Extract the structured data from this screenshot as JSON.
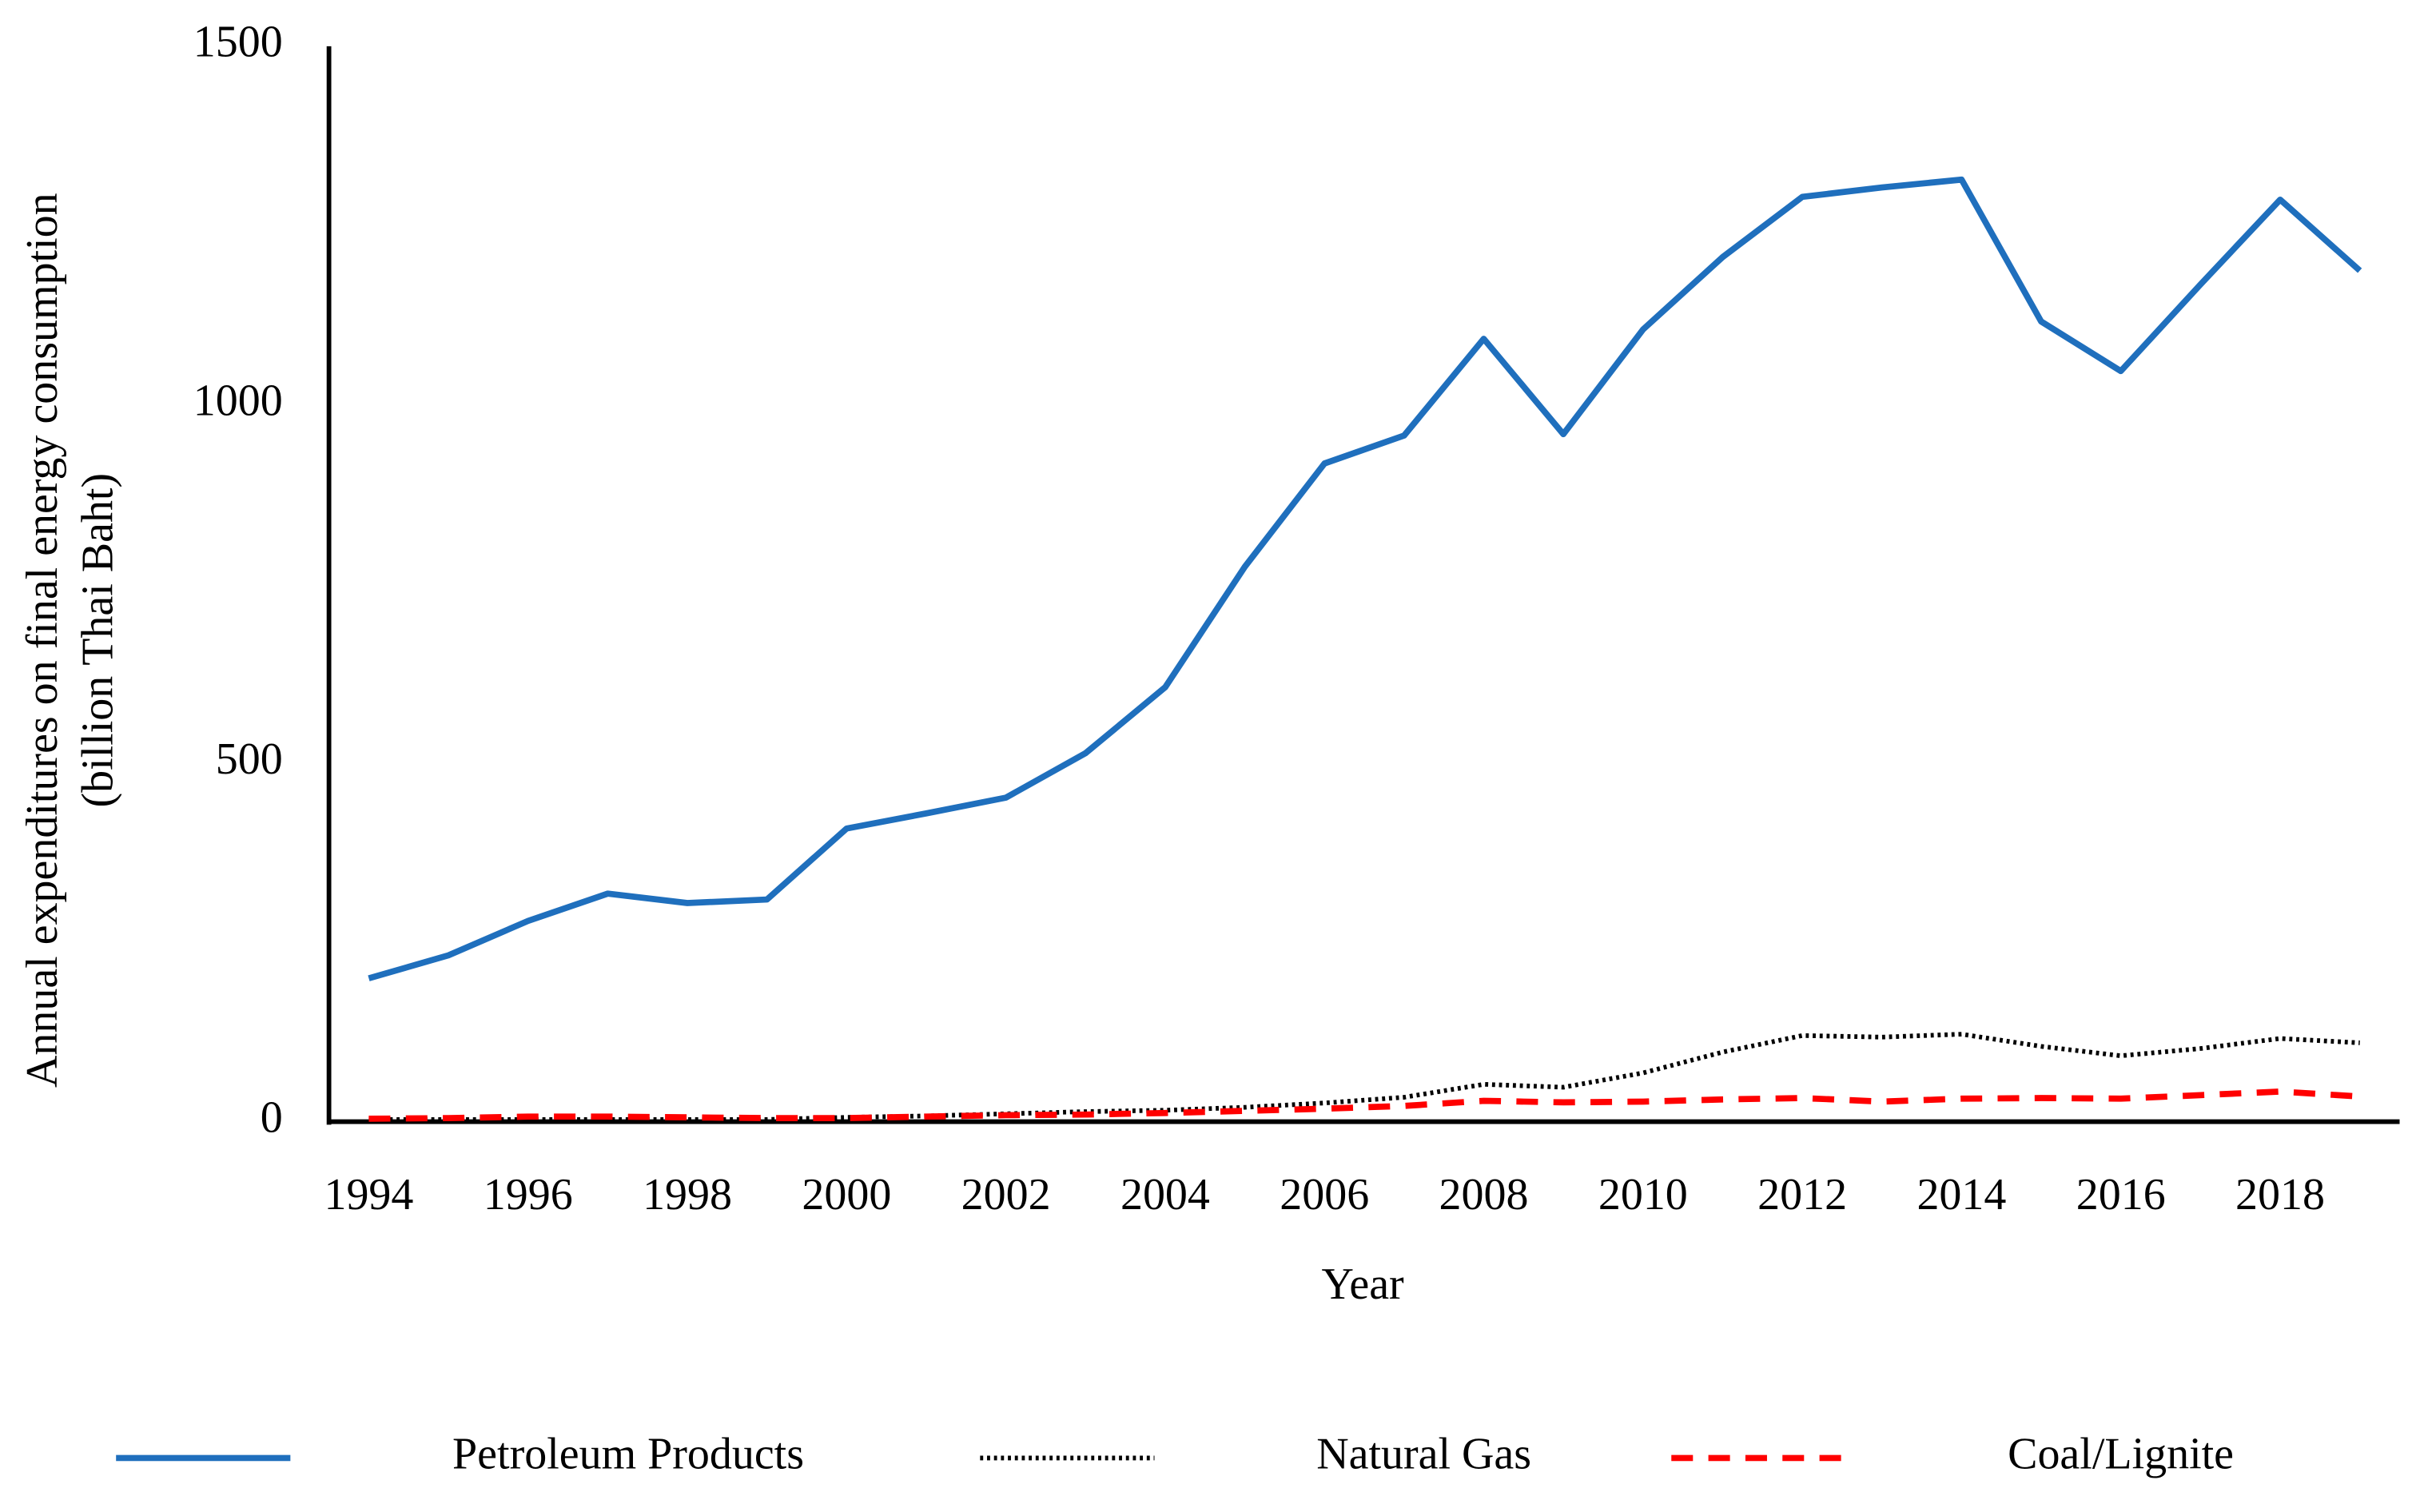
{
  "chart_data": {
    "type": "line",
    "xlabel": "Year",
    "ylabel": [
      "Annual expenditures on final energy consumption",
      "(billion Thai Baht)"
    ],
    "x": [
      1994,
      1995,
      1996,
      1997,
      1998,
      1999,
      2000,
      2001,
      2002,
      2003,
      2004,
      2005,
      2006,
      2007,
      2008,
      2009,
      2010,
      2011,
      2012,
      2013,
      2014,
      2015,
      2016,
      2017,
      2018,
      2019
    ],
    "xlim": [
      1993.5,
      2019.5
    ],
    "xticks": [
      1994,
      1996,
      1998,
      2000,
      2002,
      2004,
      2006,
      2008,
      2010,
      2012,
      2014,
      2016,
      2018
    ],
    "ylim": [
      0,
      1500
    ],
    "yticks": [
      0,
      500,
      1000,
      1500
    ],
    "grid": false,
    "legend": "bottom",
    "series": [
      {
        "name": "Petroleum Products",
        "color": "#1f6fbd",
        "dash": "solid",
        "values": [
          200,
          232,
          280,
          318,
          305,
          310,
          409,
          430,
          452,
          514,
          606,
          774,
          918,
          957,
          1092,
          959,
          1105,
          1206,
          1290,
          1303,
          1314,
          1116,
          1047,
          1168,
          1286,
          1187
        ]
      },
      {
        "name": "Natural Gas",
        "color": "#000000",
        "dash": "dotted",
        "values": [
          3,
          3,
          3,
          3,
          3,
          3,
          6,
          8,
          11,
          14,
          16,
          20,
          26,
          34,
          52,
          48,
          68,
          97,
          120,
          118,
          122,
          105,
          92,
          102,
          116,
          110
        ]
      },
      {
        "name": "Coal/Lignite",
        "color": "#ff0000",
        "dash": "dashed",
        "values": [
          4,
          5,
          7,
          7,
          6,
          5,
          5,
          7,
          9,
          10,
          12,
          15,
          18,
          22,
          29,
          27,
          28,
          31,
          33,
          28,
          32,
          33,
          32,
          37,
          42,
          35
        ]
      }
    ]
  }
}
